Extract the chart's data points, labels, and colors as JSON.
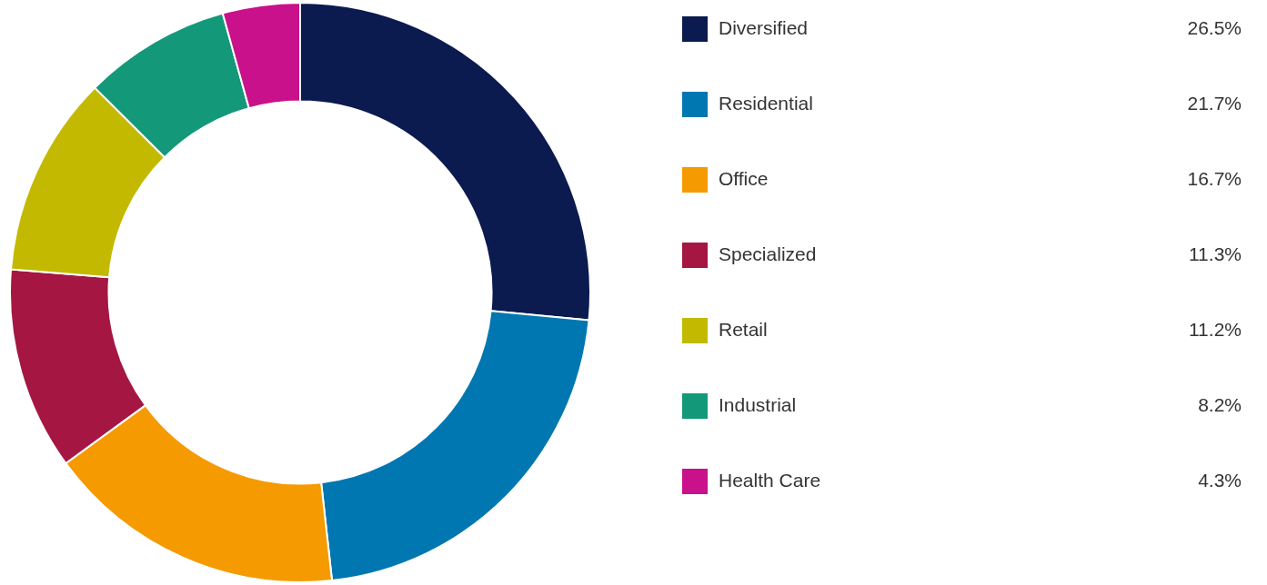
{
  "chart_data": {
    "type": "donut",
    "categories": [
      "Diversified",
      "Residential",
      "Office",
      "Specialized",
      "Retail",
      "Industrial",
      "Health Care"
    ],
    "values": [
      26.5,
      21.7,
      16.7,
      11.3,
      11.2,
      8.2,
      4.3
    ],
    "colors": [
      "#0b1a4f",
      "#0077b0",
      "#f59a00",
      "#a51643",
      "#c3b900",
      "#14987a",
      "#c8118b"
    ],
    "value_labels": [
      "26.5%",
      "21.7%",
      "16.7%",
      "11.3%",
      "11.2%",
      "8.2%",
      "4.3%"
    ],
    "legend": "right"
  }
}
